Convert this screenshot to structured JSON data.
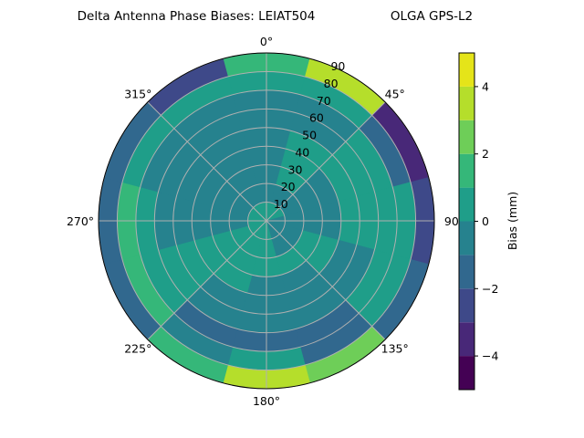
{
  "chart_data": {
    "type": "contour",
    "projection": "polar",
    "title": "Delta Antenna Phase Biases: LEIAT504",
    "title_right": "OLGA GPS-L2",
    "theta_direction": "clockwise",
    "theta_zero": "top",
    "theta_tick_labels": [
      "0°",
      "45°",
      "90°",
      "135°",
      "180°",
      "225°",
      "270°",
      "315°"
    ],
    "theta_ticks": [
      0,
      45,
      90,
      135,
      180,
      225,
      270,
      315
    ],
    "r_ticks": [
      10,
      20,
      30,
      40,
      50,
      60,
      70,
      80,
      90
    ],
    "r_tick_labels": [
      "10",
      "20",
      "30",
      "40",
      "50",
      "60",
      "70",
      "80",
      "90"
    ],
    "rlim": [
      0,
      90
    ],
    "grid": true,
    "levels": [
      -5,
      -4,
      -3,
      -2,
      -1,
      0,
      1,
      2,
      3,
      4,
      5
    ],
    "colormap": "viridis",
    "level_colors": [
      "#440154",
      "#482878",
      "#3e4989",
      "#31688e",
      "#26828e",
      "#1f9e89",
      "#35b779",
      "#6ece58",
      "#b5de2b",
      "#e5e419"
    ],
    "colorbar": {
      "label": "Bias (mm)",
      "ticks": [
        -4,
        -2,
        0,
        2,
        4
      ],
      "tick_labels": [
        "−4",
        "−2",
        "0",
        "2",
        "4"
      ],
      "range": [
        -5,
        5
      ]
    },
    "grid_azimuths": [
      0,
      30,
      60,
      90,
      120,
      150,
      180,
      210,
      240,
      270,
      300,
      330
    ],
    "grid_radii": [
      5,
      15,
      25,
      35,
      45,
      55,
      65,
      75,
      85
    ],
    "values": [
      [
        0.5,
        -0.5,
        -0.5,
        -0.5,
        -0.5,
        -0.5,
        -0.5,
        0.5,
        1.5
      ],
      [
        0.5,
        -0.5,
        0.5,
        0.5,
        0.5,
        -0.5,
        -0.5,
        0.5,
        3.5
      ],
      [
        0.5,
        -0.5,
        -0.5,
        -0.5,
        0.5,
        0.5,
        0.5,
        -1.5,
        -3.5
      ],
      [
        -0.5,
        -0.5,
        -0.5,
        -0.5,
        0.5,
        0.5,
        0.5,
        0.5,
        -2.5
      ],
      [
        -0.5,
        -0.5,
        0.5,
        0.5,
        -0.5,
        -0.5,
        0.5,
        0.5,
        -1.5
      ],
      [
        -0.5,
        -0.5,
        0.5,
        -0.5,
        -0.5,
        -0.5,
        -1.5,
        -1.5,
        2.5
      ],
      [
        0.5,
        0.5,
        0.5,
        -0.5,
        -0.5,
        -0.5,
        -1.5,
        0.5,
        3.5
      ],
      [
        0.5,
        0.5,
        0.5,
        0.5,
        -0.5,
        -0.5,
        -1.5,
        -0.5,
        1.5
      ],
      [
        0.5,
        0.5,
        0.5,
        0.5,
        0.5,
        0.5,
        0.5,
        1.5,
        -1.5
      ],
      [
        0.5,
        -0.5,
        -0.5,
        -0.5,
        -0.5,
        -0.5,
        0.5,
        1.5,
        -1.5
      ],
      [
        0.5,
        -0.5,
        -0.5,
        -0.5,
        -0.5,
        -0.5,
        -0.5,
        0.5,
        -1.5
      ],
      [
        0.5,
        -0.5,
        -0.5,
        -0.5,
        -0.5,
        -0.5,
        -0.5,
        0.5,
        -2.5
      ]
    ]
  }
}
